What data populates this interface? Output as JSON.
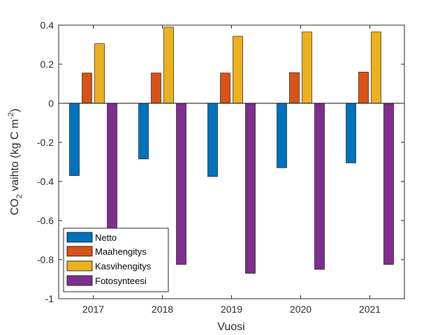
{
  "chart_data": {
    "type": "bar",
    "categories": [
      "2017",
      "2018",
      "2019",
      "2020",
      "2021"
    ],
    "series": [
      {
        "name": "Netto",
        "color": "#0072BD",
        "values": [
          -0.37,
          -0.285,
          -0.375,
          -0.33,
          -0.305
        ]
      },
      {
        "name": "Maahengitys",
        "color": "#D95319",
        "values": [
          0.155,
          0.155,
          0.155,
          0.157,
          0.16
        ]
      },
      {
        "name": "Kasvihengitys",
        "color": "#EDB120",
        "values": [
          0.305,
          0.39,
          0.343,
          0.365,
          0.365
        ]
      },
      {
        "name": "Fotosynteesi",
        "color": "#7E2F8E",
        "values": [
          -0.83,
          -0.825,
          -0.87,
          -0.85,
          -0.825
        ]
      }
    ],
    "xlabel": "Vuosi",
    "ylabel": {
      "prefix": "CO",
      "sub": "2",
      "middle": " vaihto (kg C m",
      "sup": "-2",
      "suffix": ")"
    },
    "ylim": [
      -1,
      0.4
    ],
    "yticks": [
      "-1",
      "-0.8",
      "-0.6",
      "-0.4",
      "-0.2",
      "0",
      "0.2",
      "0.4"
    ],
    "ytick_values": [
      -1,
      -0.8,
      -0.6,
      -0.4,
      -0.2,
      0,
      0.2,
      0.4
    ],
    "grid": false,
    "legend_position": "bottom-left"
  }
}
